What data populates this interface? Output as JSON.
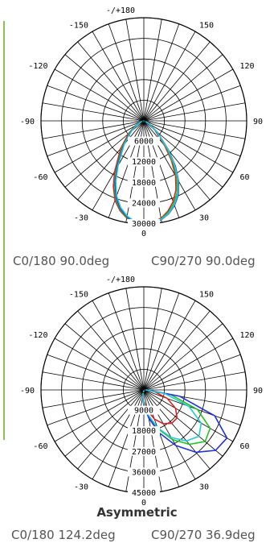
{
  "chart_data": [
    {
      "type": "polar",
      "title": "",
      "angle_labels": [
        "-/+180",
        "150",
        "120",
        "90",
        "60",
        "30",
        "-150",
        "-120",
        "-90",
        "-60",
        "-30"
      ],
      "center_label": "0",
      "bottom_label": "0",
      "radial_ticks": [
        6000,
        12000,
        18000,
        24000,
        30000
      ],
      "radial_max": 30000,
      "series": [
        {
          "color": "#e02020",
          "angles": [
            -80,
            -70,
            -60,
            -50,
            -40,
            -30,
            -25,
            -20,
            -15,
            -10,
            -5,
            0,
            5,
            10,
            15,
            20,
            25,
            30,
            35,
            40,
            50,
            60,
            70
          ],
          "values": [
            300,
            1100,
            2900,
            5800,
            10500,
            17000,
            21000,
            24600,
            27000,
            28700,
            29700,
            30000,
            29700,
            28800,
            27200,
            25000,
            22200,
            18500,
            14000,
            9500,
            4200,
            1500,
            400
          ]
        },
        {
          "color": "#22c022",
          "angles": [
            -80,
            -70,
            -60,
            -50,
            -40,
            -30,
            -25,
            -20,
            -15,
            -10,
            -5,
            0,
            5,
            10,
            15,
            20,
            25,
            30,
            35,
            40,
            50,
            60,
            70
          ],
          "values": [
            300,
            1000,
            2600,
            5200,
            9600,
            16000,
            20200,
            24000,
            26700,
            28500,
            29600,
            30000,
            29800,
            29000,
            27600,
            25600,
            23000,
            19400,
            15000,
            10500,
            4800,
            1700,
            450
          ]
        },
        {
          "color": "#2030e0",
          "angles": [
            -80,
            -70,
            -60,
            -50,
            -40,
            -30,
            -25,
            -20,
            -15,
            -10,
            -5,
            0,
            5,
            10,
            15,
            20,
            25,
            30,
            35,
            40,
            50,
            60,
            70
          ],
          "values": [
            300,
            950,
            2400,
            4900,
            9200,
            15500,
            19800,
            23600,
            26400,
            28300,
            29500,
            30000,
            29900,
            29200,
            28000,
            26200,
            23800,
            20300,
            16000,
            11300,
            5200,
            1800,
            500
          ]
        },
        {
          "color": "#22c8d8",
          "angles": [
            -80,
            -70,
            -60,
            -50,
            -40,
            -30,
            -25,
            -20,
            -15,
            -10,
            -5,
            0,
            5,
            10,
            15,
            20,
            25,
            30,
            35,
            40,
            50,
            60,
            70
          ],
          "values": [
            300,
            900,
            2300,
            4700,
            8900,
            15000,
            19300,
            23200,
            26100,
            28100,
            29400,
            29900,
            29800,
            29100,
            27900,
            26000,
            23500,
            20000,
            15700,
            11000,
            5000,
            1700,
            480
          ]
        }
      ]
    },
    {
      "type": "polar",
      "title": "",
      "angle_labels": [
        "-/+180",
        "150",
        "120",
        "90",
        "60",
        "30",
        "-150",
        "-120",
        "-90",
        "-60",
        "-30"
      ],
      "center_label": "0",
      "bottom_label": "0",
      "radial_ticks": [
        9000,
        18000,
        27000,
        36000,
        45000
      ],
      "radial_max": 45000,
      "series": [
        {
          "color": "#e02020",
          "angles": [
            -20,
            -10,
            0,
            10,
            20,
            30,
            40,
            50,
            60,
            70,
            80,
            90
          ],
          "values": [
            300,
            2000,
            5000,
            9000,
            13500,
            17000,
            19000,
            19000,
            16000,
            11000,
            5000,
            600
          ]
        },
        {
          "color": "#22c022",
          "angles": [
            -20,
            -10,
            0,
            10,
            20,
            30,
            40,
            50,
            60,
            70,
            80,
            90
          ],
          "values": [
            300,
            2600,
            6300,
            11500,
            18000,
            25000,
            31000,
            35000,
            33500,
            25000,
            12000,
            1200
          ]
        },
        {
          "color": "#2030e0",
          "angles": [
            -20,
            -10,
            0,
            10,
            20,
            30,
            40,
            50,
            60,
            70,
            80,
            90
          ],
          "values": [
            300,
            2800,
            6800,
            12500,
            20000,
            28000,
            35500,
            41000,
            42000,
            33000,
            16000,
            1500
          ]
        },
        {
          "color": "#22c8d8",
          "angles": [
            -20,
            -10,
            0,
            10,
            20,
            30,
            40,
            50,
            60,
            70,
            80,
            90
          ],
          "values": [
            300,
            2400,
            6000,
            11000,
            17500,
            24000,
            29000,
            31500,
            29000,
            21000,
            9500,
            900
          ]
        }
      ]
    }
  ],
  "captions": {
    "top_left": "C0/180 90.0deg",
    "top_right": "C90/270 90.0deg",
    "asymmetric": "Asymmetric",
    "bottom_left": "C0/180 124.2deg",
    "bottom_right": "C90/270 36.9deg"
  },
  "colors": {
    "accent_line": "#8cc152",
    "grid": "#000000"
  }
}
